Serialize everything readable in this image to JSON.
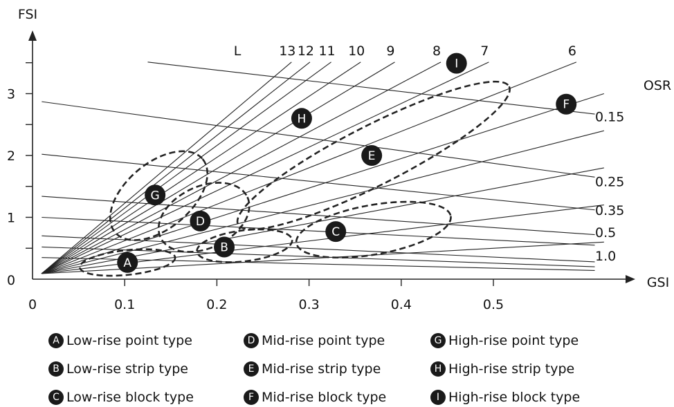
{
  "chart_data": {
    "type": "line",
    "title": "",
    "xlabel": "GSI",
    "ylabel": "FSI",
    "xlim": [
      0,
      0.6
    ],
    "ylim": [
      0,
      3.6
    ],
    "x_ticks": [
      "0",
      "0.1",
      "0.2",
      "0.3",
      "0.4",
      "0.5"
    ],
    "y_ticks": [
      "0",
      "1",
      "2",
      "3"
    ],
    "grid": false,
    "l_header": "L",
    "osr_header": "OSR",
    "l_lines": [
      {
        "label": "13",
        "gsi": 0.281,
        "fsi": 3.51
      },
      {
        "label": "12",
        "gsi": 0.301,
        "fsi": 3.51
      },
      {
        "label": "11",
        "gsi": 0.324,
        "fsi": 3.51
      },
      {
        "label": "10",
        "gsi": 0.356,
        "fsi": 3.51
      },
      {
        "label": "9",
        "gsi": 0.393,
        "fsi": 3.51
      },
      {
        "label": "8",
        "gsi": 0.443,
        "fsi": 3.51
      },
      {
        "label": "7",
        "gsi": 0.495,
        "fsi": 3.51
      },
      {
        "label": "6",
        "gsi": 0.59,
        "fsi": 3.51
      },
      {
        "label": "",
        "gsi": 0.62,
        "fsi": 3.0
      },
      {
        "label": "",
        "gsi": 0.62,
        "fsi": 2.4
      },
      {
        "label": "",
        "gsi": 0.62,
        "fsi": 1.8
      },
      {
        "label": "",
        "gsi": 0.62,
        "fsi": 1.2
      },
      {
        "label": "",
        "gsi": 0.62,
        "fsi": 0.6
      }
    ],
    "osr_lines": [
      {
        "label": "0.15",
        "from": [
          0.125,
          3.51
        ],
        "to": [
          0.61,
          2.67
        ]
      },
      {
        "label": "0.25",
        "from": [
          0.01,
          2.87
        ],
        "to": [
          0.61,
          1.65
        ]
      },
      {
        "label": "0.35",
        "from": [
          0.01,
          2.02
        ],
        "to": [
          0.61,
          1.12
        ]
      },
      {
        "label": "0.5",
        "from": [
          0.01,
          1.34
        ],
        "to": [
          0.61,
          0.72
        ]
      },
      {
        "label": "1.0",
        "from": [
          0.01,
          0.7
        ],
        "to": [
          0.61,
          0.28
        ]
      },
      {
        "label": "",
        "from": [
          0.01,
          1.0
        ],
        "to": [
          0.61,
          0.55
        ]
      },
      {
        "label": "",
        "from": [
          0.01,
          0.52
        ],
        "to": [
          0.61,
          0.2
        ]
      },
      {
        "label": "",
        "from": [
          0.01,
          0.35
        ],
        "to": [
          0.61,
          0.14
        ]
      }
    ],
    "osr_label_positions": [
      {
        "label": "0.15",
        "fsi": 2.63
      },
      {
        "label": "0.25",
        "fsi": 1.58
      },
      {
        "label": "0.35",
        "fsi": 1.12
      },
      {
        "label": "0.5",
        "fsi": 0.76
      },
      {
        "label": "1.0",
        "fsi": 0.38
      }
    ],
    "types": [
      {
        "badge": "A",
        "name": "Low-rise point type",
        "gsi": 0.103,
        "fsi": 0.27,
        "region": {
          "cx": 0.103,
          "cy": 0.27,
          "rx": 0.052,
          "ry": 0.2,
          "angle": -6
        }
      },
      {
        "badge": "B",
        "name": "Low-rise strip type",
        "gsi": 0.208,
        "fsi": 0.52,
        "region": {
          "cx": 0.23,
          "cy": 0.54,
          "rx": 0.052,
          "ry": 0.25,
          "angle": -7
        }
      },
      {
        "badge": "C",
        "name": "Low-rise block type",
        "gsi": 0.329,
        "fsi": 0.77,
        "region": {
          "cx": 0.37,
          "cy": 0.8,
          "rx": 0.085,
          "ry": 0.4,
          "angle": -10
        }
      },
      {
        "badge": "D",
        "name": "Mid-rise point type",
        "gsi": 0.182,
        "fsi": 0.94,
        "region": {
          "cx": 0.186,
          "cy": 1.0,
          "rx": 0.052,
          "ry": 0.5,
          "angle": -25
        }
      },
      {
        "badge": "E",
        "name": "Mid-rise strip type",
        "gsi": 0.368,
        "fsi": 2.0,
        "region": {
          "cx": 0.37,
          "cy": 2.0,
          "rx": 0.165,
          "ry": 0.48,
          "angle": -27
        }
      },
      {
        "badge": "F",
        "name": "Mid-rise block type",
        "gsi": 0.579,
        "fsi": 2.83,
        "region": null
      },
      {
        "badge": "G",
        "name": "High-rise point type",
        "gsi": 0.133,
        "fsi": 1.36,
        "region": {
          "cx": 0.137,
          "cy": 1.35,
          "rx": 0.062,
          "ry": 0.53,
          "angle": -40
        }
      },
      {
        "badge": "H",
        "name": "High-rise strip type",
        "gsi": 0.292,
        "fsi": 2.6,
        "region": null
      },
      {
        "badge": "I",
        "name": "High-rise block type",
        "gsi": 0.46,
        "fsi": 3.49,
        "region": null
      }
    ]
  },
  "colors": {
    "line": "#222222",
    "badge_fill": "#1a1a1a",
    "badge_text": "#ffffff"
  }
}
